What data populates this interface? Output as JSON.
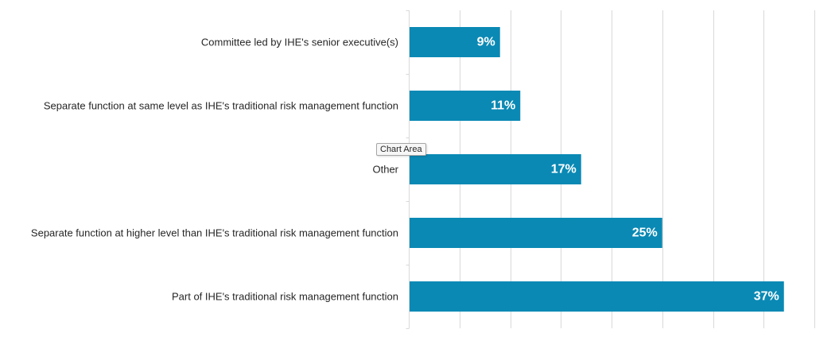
{
  "chart_data": {
    "type": "bar",
    "orientation": "horizontal",
    "categories": [
      "Committee led by IHE's senior executive(s)",
      "Separate function at same level as IHE's traditional risk management function",
      "Other",
      "Separate function at higher level than IHE's traditional risk management function",
      "Part of IHE's traditional risk management function"
    ],
    "values": [
      9,
      11,
      17,
      25,
      37
    ],
    "value_labels": [
      "9%",
      "11%",
      "17%",
      "25%",
      "37%"
    ],
    "xlim": [
      0,
      40
    ],
    "grid": true,
    "bar_color": "#0a89b4",
    "gridline_color": "#d9d9d9"
  },
  "tooltip": {
    "text": "Chart Area"
  }
}
